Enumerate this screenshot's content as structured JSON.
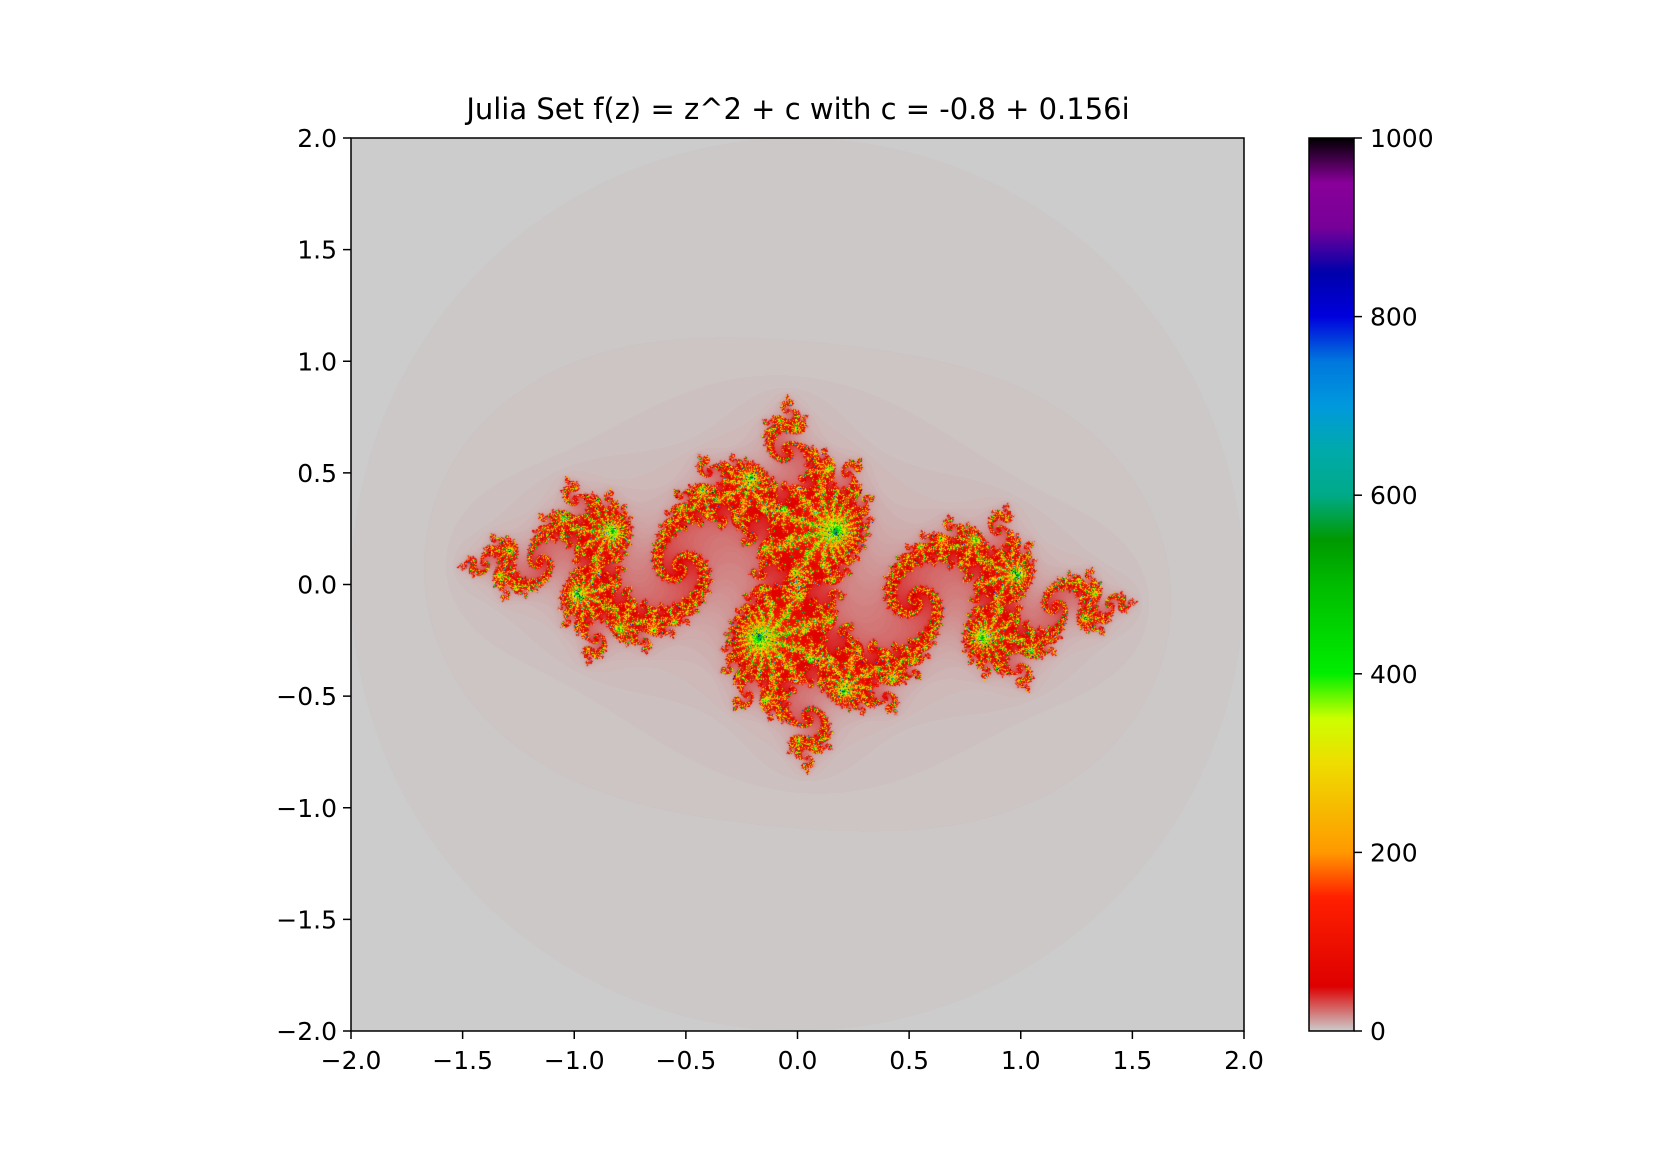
{
  "chart_data": {
    "type": "heatmap",
    "title": "Julia Set f(z) = z^2 + c with c = -0.8 + 0.156i",
    "xlabel": "",
    "ylabel": "",
    "xlim": [
      -2.0,
      2.0
    ],
    "ylim": [
      -2.0,
      2.0
    ],
    "c": {
      "re": -0.8,
      "im": 0.156
    },
    "max_iterations": 1000,
    "x_ticks": [
      "−2.0",
      "−1.5",
      "−1.0",
      "−0.5",
      "0.0",
      "0.5",
      "1.0",
      "1.5",
      "2.0"
    ],
    "y_ticks": [
      "−2.0",
      "−1.5",
      "−1.0",
      "−0.5",
      "0.0",
      "0.5",
      "1.0",
      "1.5",
      "2.0"
    ],
    "colorbar": {
      "range": [
        0,
        1000
      ],
      "ticks": [
        "0",
        "200",
        "400",
        "600",
        "800",
        "1000"
      ],
      "colormap": "nipy_spectral_r",
      "stops": [
        {
          "v": 0.0,
          "color": "#cccccc"
        },
        {
          "v": 0.05,
          "color": "#dd0000"
        },
        {
          "v": 0.15,
          "color": "#ff2000"
        },
        {
          "v": 0.2,
          "color": "#ff9900"
        },
        {
          "v": 0.3,
          "color": "#eedd00"
        },
        {
          "v": 0.35,
          "color": "#ccff00"
        },
        {
          "v": 0.4,
          "color": "#00ee00"
        },
        {
          "v": 0.5,
          "color": "#00bb00"
        },
        {
          "v": 0.55,
          "color": "#009900"
        },
        {
          "v": 0.6,
          "color": "#00aa88"
        },
        {
          "v": 0.65,
          "color": "#00aaaa"
        },
        {
          "v": 0.7,
          "color": "#0099dd"
        },
        {
          "v": 0.75,
          "color": "#0077dd"
        },
        {
          "v": 0.8,
          "color": "#0000dd"
        },
        {
          "v": 0.85,
          "color": "#0000aa"
        },
        {
          "v": 0.9,
          "color": "#770099"
        },
        {
          "v": 0.95,
          "color": "#880099"
        },
        {
          "v": 1.0,
          "color": "#000000"
        }
      ]
    },
    "grid": false
  }
}
